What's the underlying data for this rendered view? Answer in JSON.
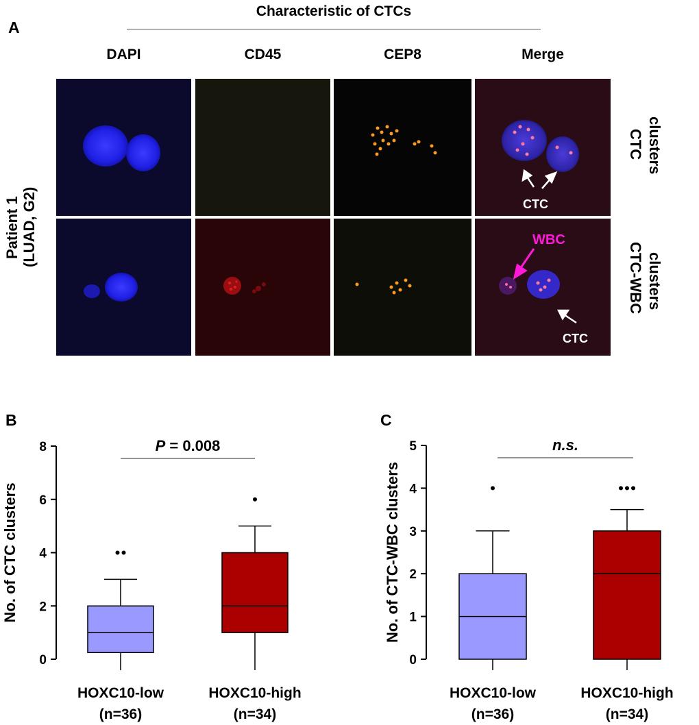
{
  "figure": {
    "panel_a": {
      "letter": "A",
      "title": "Characteristic of CTCs",
      "columns": [
        "DAPI",
        "CD45",
        "CEP8",
        "Merge"
      ],
      "row_group_label": [
        "Patient 1",
        "(LUAD, G2)"
      ],
      "rows": [
        {
          "label": [
            "CTC",
            "clusters"
          ],
          "annotations": [
            "CTC"
          ]
        },
        {
          "label": [
            "CTC-WBC",
            "clusters"
          ],
          "annotations": [
            "WBC",
            "CTC"
          ]
        }
      ],
      "colors": {
        "dapi": "#1a1aff",
        "cd45": "#d01010",
        "cep8": "#ff9a1a",
        "wbc_arrow": "#ff1ad9",
        "ctc_arrow": "#ffffff"
      }
    },
    "panel_b": {
      "letter": "B"
    },
    "panel_c": {
      "letter": "C"
    }
  },
  "chart_data": [
    {
      "type": "box",
      "panel": "B",
      "ylabel": "No. of CTC clusters",
      "ylim": [
        0,
        8
      ],
      "yticks": [
        0,
        2,
        4,
        6,
        8
      ],
      "categories": [
        [
          "HOXC10-low",
          "(n=36)"
        ],
        [
          "HOXC10-high",
          "(n=34)"
        ]
      ],
      "annotation": {
        "prefix": "P",
        "text": " = 0.008",
        "italic_prefix": true
      },
      "boxes": [
        {
          "whisker_low": 0,
          "q1": 0.25,
          "median": 1,
          "q3": 2,
          "whisker_high": 3,
          "outliers": [
            4,
            4
          ],
          "color": "#9999ff"
        },
        {
          "whisker_low": 0,
          "q1": 1,
          "median": 2,
          "q3": 4,
          "whisker_high": 5,
          "outliers": [
            6
          ],
          "color": "#aa0000"
        }
      ]
    },
    {
      "type": "box",
      "panel": "C",
      "ylabel": "No. of CTC-WBC clusters",
      "ylim": [
        0,
        5
      ],
      "yticks": [
        0,
        1,
        2,
        3,
        4,
        5
      ],
      "categories": [
        [
          "HOXC10-low",
          "(n=36)"
        ],
        [
          "HOXC10-high",
          "(n=34)"
        ]
      ],
      "annotation": {
        "prefix": "n.s.",
        "text": "",
        "italic_prefix": true
      },
      "boxes": [
        {
          "whisker_low": 0,
          "q1": 0,
          "median": 1,
          "q3": 2,
          "whisker_high": 3,
          "outliers": [
            4
          ],
          "color": "#9999ff"
        },
        {
          "whisker_low": 0,
          "q1": 0,
          "median": 2,
          "q3": 3,
          "whisker_high": 3.5,
          "outliers": [
            4,
            4,
            4
          ],
          "color": "#aa0000"
        }
      ]
    }
  ]
}
